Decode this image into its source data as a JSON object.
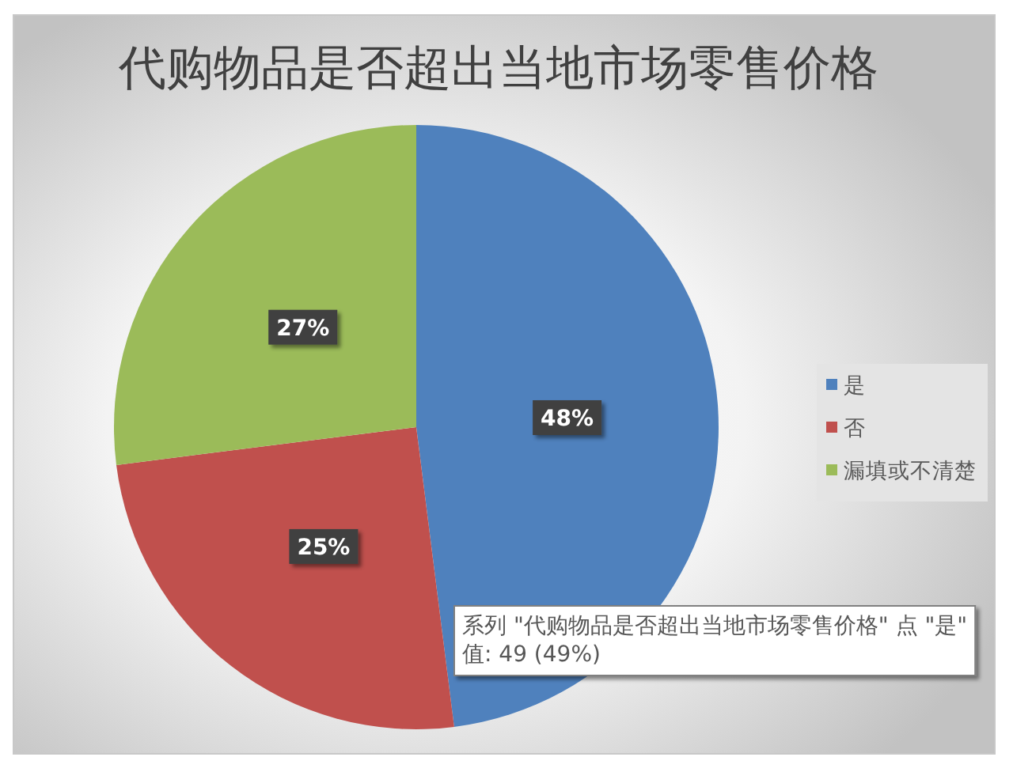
{
  "chart_data": {
    "type": "pie",
    "title": "代购物品是否超出当地市场零售价格",
    "categories": [
      "是",
      "否",
      "漏填或不清楚"
    ],
    "values": [
      48,
      25,
      27
    ],
    "value_labels": [
      "48%",
      "25%",
      "27%"
    ],
    "colors": [
      "#4f81bd",
      "#c0504d",
      "#9bbb59"
    ],
    "legend": "right",
    "annotations": [
      "系列 \"代购物品是否超出当地市场零售价格\" 点 \"是\"",
      "值: 49 (49%)"
    ]
  }
}
